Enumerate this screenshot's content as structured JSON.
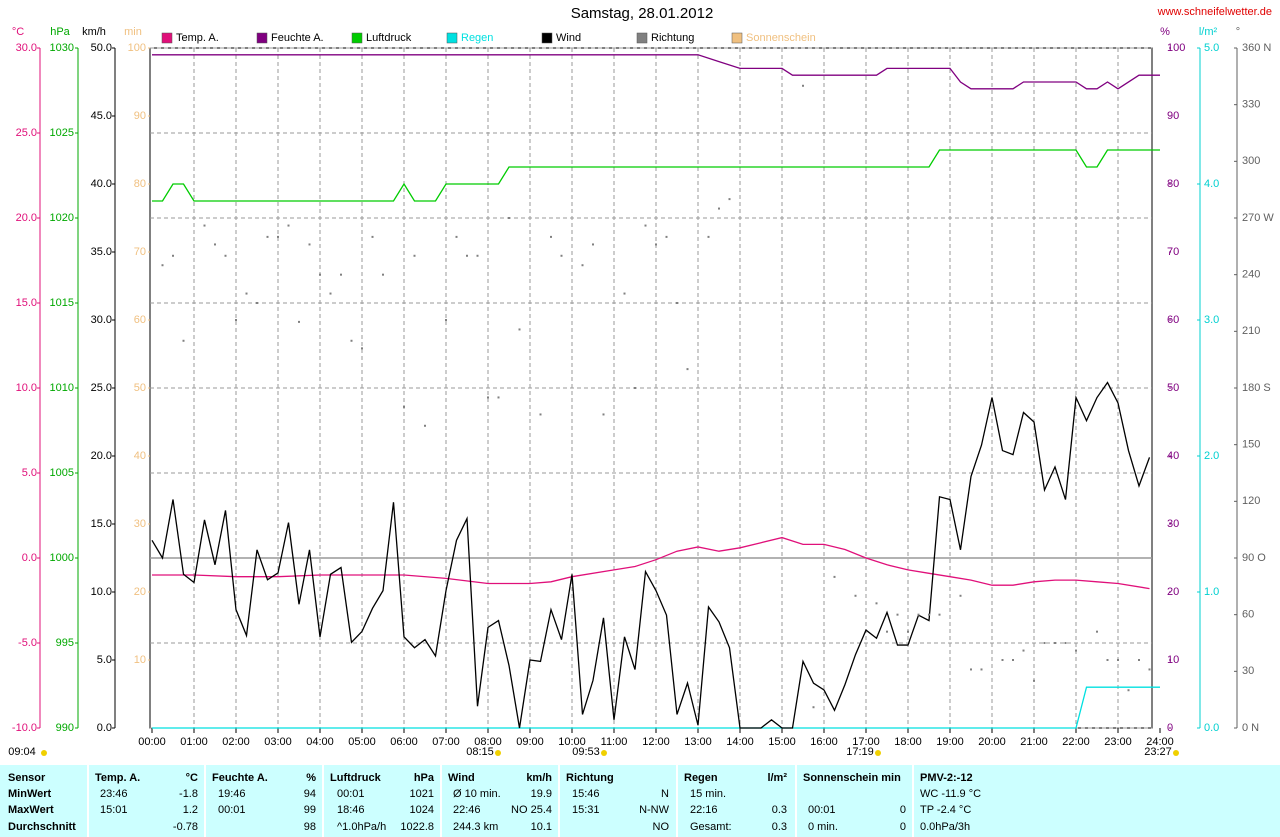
{
  "chart_data": {
    "type": "line",
    "title": "Samstag, 28.01.2012",
    "subtitle": "www.schneifelwetter.de",
    "xlim": [
      0,
      1440
    ],
    "xticks": [
      {
        "value": 0,
        "label": "00:00"
      },
      {
        "value": 60,
        "label": "01:00"
      },
      {
        "value": 120,
        "label": "02:00"
      },
      {
        "value": 180,
        "label": "03:00"
      },
      {
        "value": 240,
        "label": "04:00"
      },
      {
        "value": 300,
        "label": "05:00"
      },
      {
        "value": 360,
        "label": "06:00"
      },
      {
        "value": 420,
        "label": "07:00"
      },
      {
        "value": 480,
        "label": "08:00"
      },
      {
        "value": 540,
        "label": "09:00"
      },
      {
        "value": 600,
        "label": "10:00"
      },
      {
        "value": 660,
        "label": "11:00"
      },
      {
        "value": 720,
        "label": "12:00"
      },
      {
        "value": 780,
        "label": "13:00"
      },
      {
        "value": 840,
        "label": "14:00"
      },
      {
        "value": 900,
        "label": "15:00"
      },
      {
        "value": 960,
        "label": "16:00"
      },
      {
        "value": 1020,
        "label": "17:00"
      },
      {
        "value": 1080,
        "label": "18:00"
      },
      {
        "value": 1140,
        "label": "19:00"
      },
      {
        "value": 1200,
        "label": "20:00"
      },
      {
        "value": 1260,
        "label": "21:00"
      },
      {
        "value": 1320,
        "label": "22:00"
      },
      {
        "value": 1380,
        "label": "23:00"
      },
      {
        "value": 1440,
        "label": "24:00"
      }
    ],
    "grid": true,
    "axes": [
      {
        "label": "°C",
        "color": "#e0107a",
        "lim": [
          -10,
          30
        ],
        "ticks": [
          {
            "value": -10,
            "label": "-10.0"
          },
          {
            "value": -5,
            "label": "-5.0"
          },
          {
            "value": 0,
            "label": "0.0"
          },
          {
            "value": 5,
            "label": "5.0"
          },
          {
            "value": 10,
            "label": "10.0"
          },
          {
            "value": 15,
            "label": "15.0"
          },
          {
            "value": 20,
            "label": "20.0"
          },
          {
            "value": 25,
            "label": "25.0"
          },
          {
            "value": 30,
            "label": "30.0"
          }
        ]
      },
      {
        "label": "hPa",
        "color": "#00a800",
        "lim": [
          990,
          1030
        ],
        "ticks": [
          990,
          995,
          1000,
          1005,
          1010,
          1015,
          1020,
          1025,
          1030
        ]
      },
      {
        "label": "km/h",
        "color": "#000000",
        "lim": [
          0,
          50
        ],
        "ticks": [
          {
            "value": 0,
            "label": "0.0"
          },
          {
            "value": 5,
            "label": "5.0"
          },
          {
            "value": 10,
            "label": "10.0"
          },
          {
            "value": 15,
            "label": "15.0"
          },
          {
            "value": 20,
            "label": "20.0"
          },
          {
            "value": 25,
            "label": "25.0"
          },
          {
            "value": 30,
            "label": "30.0"
          },
          {
            "value": 35,
            "label": "35.0"
          },
          {
            "value": 40,
            "label": "40.0"
          },
          {
            "value": 45,
            "label": "45.0"
          },
          {
            "value": 50,
            "label": "50.0"
          }
        ]
      },
      {
        "label": "min",
        "color": "#f0c080",
        "lim": [
          0,
          100
        ],
        "ticks": [
          10,
          20,
          30,
          40,
          50,
          60,
          70,
          80,
          90,
          100
        ]
      },
      {
        "label": "%",
        "color": "#800080",
        "lim": [
          0,
          100
        ],
        "ticks": [
          0,
          10,
          20,
          30,
          40,
          50,
          60,
          70,
          80,
          90,
          100
        ]
      },
      {
        "label": "l/m²",
        "color": "#00d0d0",
        "lim": [
          0,
          5
        ],
        "ticks": [
          {
            "value": 0,
            "label": "0.0"
          },
          {
            "value": 1,
            "label": "1.0"
          },
          {
            "value": 2,
            "label": "2.0"
          },
          {
            "value": 3,
            "label": "3.0"
          },
          {
            "value": 4,
            "label": "4.0"
          },
          {
            "value": 5,
            "label": "5.0"
          }
        ]
      },
      {
        "label": "°",
        "color": "#606060",
        "lim": [
          0,
          360
        ],
        "ticks": [
          {
            "value": 0,
            "label": "0 N"
          },
          30,
          60,
          {
            "value": 90,
            "label": "90 O"
          },
          120,
          150,
          {
            "value": 180,
            "label": "180 S"
          },
          210,
          240,
          {
            "value": 270,
            "label": "270 W"
          },
          300,
          330,
          {
            "value": 360,
            "label": "360 N"
          }
        ]
      }
    ],
    "series": [
      {
        "name": "Temp. A.",
        "color": "#e0107a",
        "axis": 0,
        "x": [
          0,
          60,
          120,
          180,
          240,
          300,
          360,
          420,
          480,
          540,
          570,
          600,
          660,
          690,
          720,
          750,
          780,
          810,
          840,
          870,
          900,
          930,
          960,
          990,
          1020,
          1050,
          1080,
          1110,
          1140,
          1170,
          1200,
          1230,
          1260,
          1290,
          1320,
          1350,
          1380,
          1425
        ],
        "values": [
          -1.0,
          -1.0,
          -1.1,
          -1.1,
          -1.0,
          -1.0,
          -1.0,
          -1.2,
          -1.5,
          -1.5,
          -1.4,
          -1.1,
          -0.7,
          -0.5,
          -0.1,
          0.4,
          0.65,
          0.4,
          0.6,
          0.9,
          1.2,
          0.8,
          0.8,
          0.5,
          0,
          -0.4,
          -0.7,
          -0.9,
          -1.1,
          -1.3,
          -1.6,
          -1.6,
          -1.4,
          -1.3,
          -1.3,
          -1.4,
          -1.5,
          -1.8
        ]
      },
      {
        "name": "Feuchte A.",
        "color": "#800080",
        "axis": 4,
        "x": [
          0,
          780,
          810,
          840,
          900,
          915,
          1035,
          1050,
          1140,
          1155,
          1170,
          1230,
          1245,
          1320,
          1335,
          1350,
          1365,
          1380,
          1410,
          1440
        ],
        "values": [
          99,
          99,
          98,
          97,
          97,
          96,
          96,
          97,
          97,
          95,
          94,
          94,
          95,
          95,
          94,
          94,
          95,
          94,
          96,
          96
        ]
      },
      {
        "name": "Luftdruck",
        "color": "#00cc00",
        "axis": 1,
        "x": [
          0,
          15,
          30,
          45,
          60,
          345,
          360,
          375,
          405,
          420,
          495,
          510,
          1110,
          1125,
          1320,
          1335,
          1350,
          1365,
          1440
        ],
        "values": [
          1021,
          1021,
          1022,
          1022,
          1021,
          1021,
          1022,
          1021,
          1021,
          1022,
          1022,
          1023,
          1023,
          1024,
          1024,
          1023,
          1023,
          1024,
          1024
        ]
      },
      {
        "name": "Regen",
        "color": "#00e0e0",
        "axis": 5,
        "x": [
          0,
          1320,
          1335,
          1440
        ],
        "values": [
          0,
          0,
          0.3,
          0.3
        ]
      },
      {
        "name": "Wind",
        "color": "#000000",
        "axis": 2,
        "x": [
          0,
          15,
          30,
          45,
          60,
          75,
          90,
          105,
          120,
          135,
          150,
          165,
          180,
          195,
          210,
          225,
          240,
          255,
          270,
          285,
          300,
          315,
          330,
          345,
          360,
          375,
          390,
          405,
          420,
          435,
          450,
          465,
          480,
          495,
          510,
          525,
          540,
          555,
          570,
          585,
          600,
          615,
          630,
          645,
          660,
          675,
          690,
          705,
          720,
          735,
          750,
          765,
          780,
          795,
          810,
          825,
          840,
          855,
          870,
          885,
          900,
          915,
          930,
          945,
          960,
          975,
          990,
          1005,
          1020,
          1035,
          1050,
          1065,
          1080,
          1095,
          1110,
          1125,
          1140,
          1155,
          1170,
          1185,
          1200,
          1215,
          1230,
          1245,
          1260,
          1275,
          1290,
          1305,
          1320,
          1335,
          1350,
          1365,
          1380,
          1395,
          1410,
          1425
        ],
        "values": [
          13.8,
          12.5,
          16.8,
          11.3,
          10.7,
          15.3,
          12,
          16,
          8.7,
          6.8,
          13.1,
          10.9,
          11.4,
          15.1,
          9.1,
          13.1,
          6.7,
          11.3,
          11.8,
          6.3,
          7.1,
          8.8,
          10.1,
          16.6,
          6.7,
          5.9,
          6.5,
          5.3,
          10.1,
          13.8,
          15.4,
          1.6,
          7.4,
          7.9,
          4.6,
          0,
          5,
          4.9,
          8.7,
          6.5,
          11.3,
          1,
          3.5,
          8.1,
          0.6,
          6.7,
          4.3,
          11.5,
          10.1,
          8.3,
          1,
          3.3,
          0.2,
          8.9,
          7.8,
          5.9,
          0,
          0,
          0,
          0.6,
          0,
          0,
          4.9,
          3.3,
          2.8,
          1.3,
          3.2,
          5.4,
          7.2,
          6.6,
          8.5,
          6.1,
          6.1,
          8.3,
          7.9,
          17,
          16.8,
          13.1,
          18.5,
          20.8,
          24.3,
          20.4,
          20.1,
          23.2,
          22.5,
          17.5,
          19.2,
          16.8,
          24.3,
          22.6,
          24.3,
          25.4,
          23.9,
          20.4,
          17.8,
          19.9
        ]
      },
      {
        "name": "Richtung",
        "color": "#808080",
        "axis": 6,
        "type": "scatter",
        "x": [
          0,
          15,
          30,
          45,
          60,
          75,
          90,
          105,
          120,
          135,
          150,
          165,
          180,
          195,
          210,
          225,
          240,
          255,
          270,
          285,
          300,
          315,
          330,
          345,
          360,
          375,
          390,
          405,
          420,
          435,
          450,
          465,
          480,
          495,
          510,
          525,
          540,
          555,
          570,
          585,
          600,
          615,
          630,
          645,
          660,
          675,
          690,
          705,
          720,
          735,
          750,
          765,
          780,
          795,
          810,
          825,
          840,
          855,
          870,
          885,
          900,
          915,
          930,
          945,
          960,
          975,
          990,
          1005,
          1020,
          1035,
          1050,
          1065,
          1080,
          1095,
          1110,
          1125,
          1140,
          1155,
          1170,
          1185,
          1200,
          1215,
          1230,
          1245,
          1260,
          1275,
          1290,
          1305,
          1320,
          1335,
          1350,
          1365,
          1380,
          1395,
          1410,
          1425
        ],
        "values": [
          null,
          245,
          250,
          205,
          null,
          266,
          256,
          250,
          216,
          230,
          225,
          260,
          260,
          266,
          215,
          256,
          240,
          230,
          240,
          205,
          201,
          260,
          240,
          null,
          170,
          250,
          160,
          null,
          216,
          260,
          250,
          250,
          175,
          175,
          270,
          211,
          null,
          166,
          260,
          250,
          null,
          245,
          256,
          166,
          null,
          230,
          180,
          266,
          256,
          260,
          225,
          190,
          null,
          260,
          275,
          280,
          null,
          null,
          null,
          null,
          null,
          null,
          340,
          11,
          null,
          80,
          null,
          70,
          null,
          66,
          51,
          60,
          51,
          60,
          60,
          60,
          null,
          70,
          31,
          31,
          null,
          36,
          36,
          41,
          25,
          45,
          45,
          45,
          41,
          null,
          51,
          36,
          36,
          20,
          36,
          31
        ]
      },
      {
        "name": "Sonnenschein",
        "color": "#f0c080"
      }
    ],
    "annotations": [
      "09:04",
      "08:15",
      "09:53",
      "17:19",
      "23:27"
    ]
  },
  "table": {
    "sensor": [
      "Sensor",
      "MinWert",
      "MaxWert",
      "Durchschnitt"
    ],
    "groups": [
      {
        "title": "Temp. A.",
        "unit": "°C",
        "rows": [
          {
            "time": "23:46",
            "value": "-1.8"
          },
          {
            "time": "15:01",
            "value": "1.2"
          },
          {
            "value": "-0.78"
          }
        ]
      },
      {
        "title": "Feuchte A.",
        "unit": "%",
        "rows": [
          {
            "time": "19:46",
            "value": "94"
          },
          {
            "time": "00:01",
            "value": "99"
          },
          {
            "value": "98"
          }
        ]
      },
      {
        "title": "Luftdruck",
        "unit": "hPa",
        "rows": [
          {
            "time": "00:01",
            "value": "1021"
          },
          {
            "time": "18:46",
            "value": "1024"
          },
          {
            "time": "^1.0hPa/h",
            "value": "1022.8"
          }
        ]
      },
      {
        "title": "Wind",
        "unit": "km/h",
        "rows": [
          {
            "time": "Ø 10 min.",
            "value": "19.9"
          },
          {
            "time": "22:46",
            "value": "NO 25.4"
          },
          {
            "time": "244.3 km",
            "value": "10.1"
          }
        ]
      },
      {
        "title": "Richtung",
        "rows": [
          {
            "time": "15:46",
            "value": "N"
          },
          {
            "time": "15:31",
            "value": "N-NW"
          },
          {
            "value": "NO"
          }
        ]
      },
      {
        "title": "Regen",
        "unit": "l/m²",
        "rows": [
          {
            "time": "15 min."
          },
          {
            "time": "22:16",
            "value": "0.3"
          },
          {
            "time": "Gesamt:",
            "value": "0.3"
          }
        ]
      },
      {
        "title": "Sonnenschein min",
        "rows": [
          null,
          {
            "time": "00:01",
            "value": "0"
          },
          {
            "time": "0 min.",
            "value": "0"
          }
        ]
      },
      {
        "title": "PMV-2:-12",
        "rows": [
          {
            "time": "WC -11.9 °C"
          },
          {
            "time": "TP -2.4 °C"
          },
          {
            "time": "0.0hPa/3h"
          }
        ]
      }
    ]
  }
}
